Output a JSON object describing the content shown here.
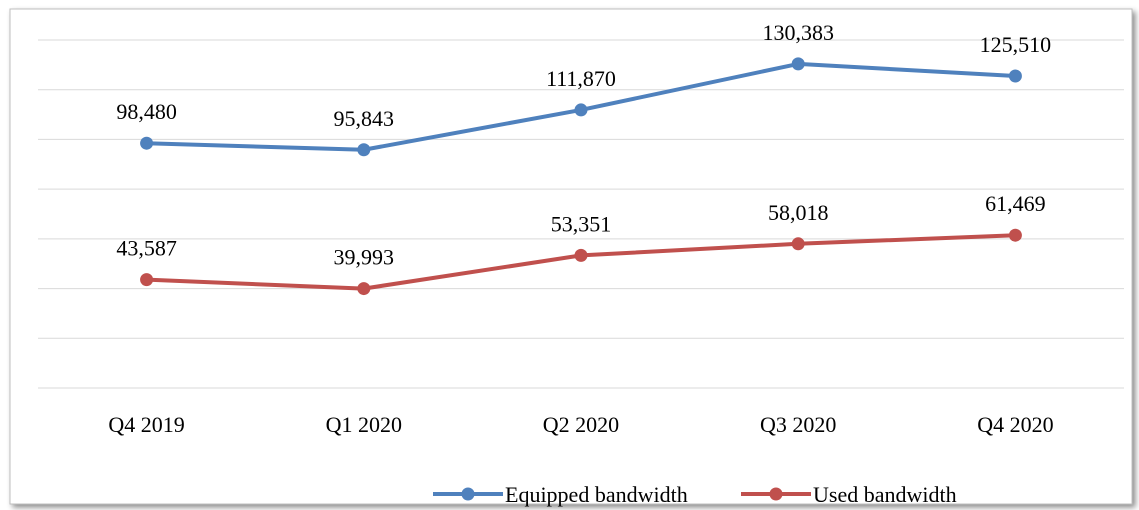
{
  "chart_data": {
    "type": "line",
    "categories": [
      "Q4 2019",
      "Q1 2020",
      "Q2 2020",
      "Q3 2020",
      "Q4 2020"
    ],
    "series": [
      {
        "name": "Equipped bandwidth",
        "values": [
          98480,
          95843,
          111870,
          130383,
          125510
        ],
        "labels": [
          "98,480",
          "95,843",
          "111,870",
          "130,383",
          "125,510"
        ],
        "color": "#4F81BD"
      },
      {
        "name": "Used bandwidth",
        "values": [
          43587,
          39993,
          53351,
          58018,
          61469
        ],
        "labels": [
          "43,587",
          "39,993",
          "53,351",
          "58,018",
          "61,469"
        ],
        "color": "#C0504D"
      }
    ],
    "title": "",
    "xlabel": "",
    "ylabel": "",
    "ylim": [
      0,
      140000
    ],
    "grid": true,
    "legend_position": "bottom",
    "colors": {
      "gridline": "#D9D9D9",
      "frame": "#BFBFBF",
      "text": "#000000"
    }
  }
}
